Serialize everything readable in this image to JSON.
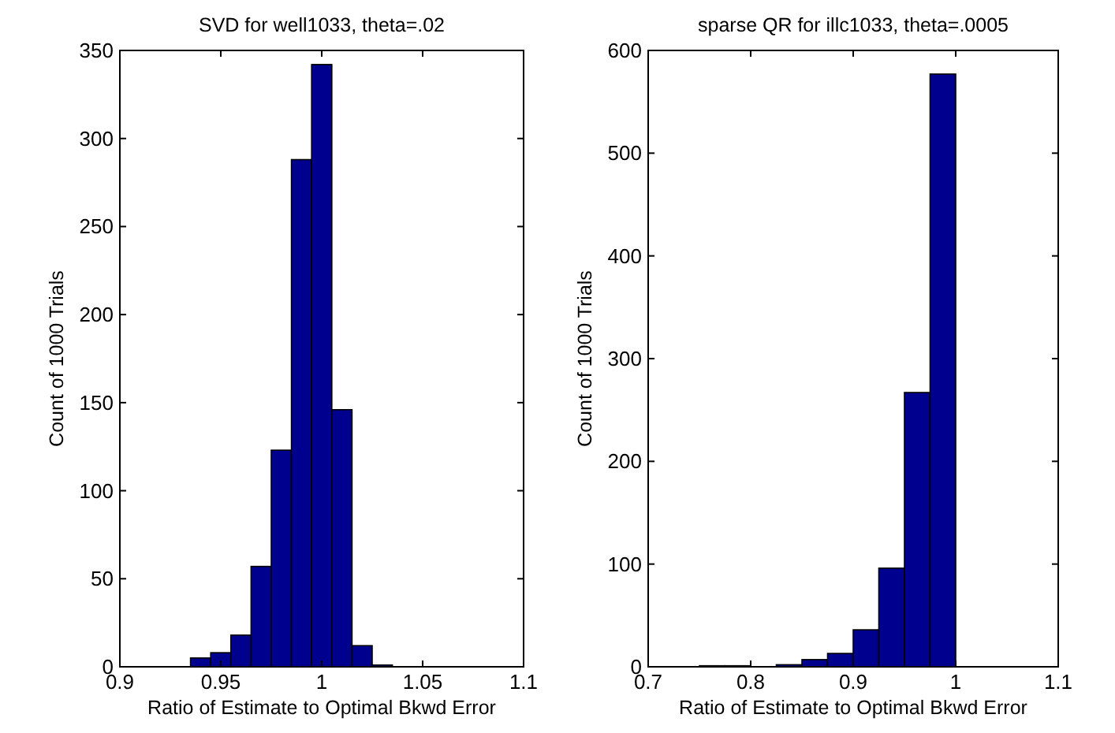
{
  "chart_data": [
    {
      "type": "histogram",
      "title": "SVD for well1033, theta=.02",
      "xlabel": "Ratio of Estimate to Optimal Bkwd Error",
      "ylabel": "Count of 1000 Trials",
      "bins": [
        0.935,
        0.945,
        0.955,
        0.965,
        0.975,
        0.985,
        0.995,
        1.005,
        1.015,
        1.025,
        1.035
      ],
      "values": [
        5,
        8,
        18,
        57,
        123,
        288,
        342,
        146,
        12,
        1
      ],
      "color": "#00008f",
      "xlim": [
        0.9,
        1.1
      ],
      "xticks": [
        0.9,
        0.95,
        1,
        1.05,
        1.1
      ],
      "ylim": [
        0,
        350
      ],
      "yticks": [
        0,
        50,
        100,
        150,
        200,
        250,
        300,
        350
      ]
    },
    {
      "type": "histogram",
      "title": "sparse QR for illc1033, theta=.0005",
      "xlabel": "Ratio of Estimate to Optimal Bkwd Error",
      "ylabel": "Count of 1000 Trials",
      "bins": [
        0.75,
        0.775,
        0.8,
        0.825,
        0.85,
        0.875,
        0.9,
        0.925,
        0.95,
        0.975,
        1.0
      ],
      "values": [
        1,
        1,
        0,
        2,
        7,
        13,
        36,
        96,
        267,
        577
      ],
      "color": "#00008f",
      "xlim": [
        0.7,
        1.1
      ],
      "xticks": [
        0.7,
        0.8,
        0.9,
        1,
        1.1
      ],
      "ylim": [
        0,
        600
      ],
      "yticks": [
        0,
        100,
        200,
        300,
        400,
        500,
        600
      ]
    }
  ]
}
